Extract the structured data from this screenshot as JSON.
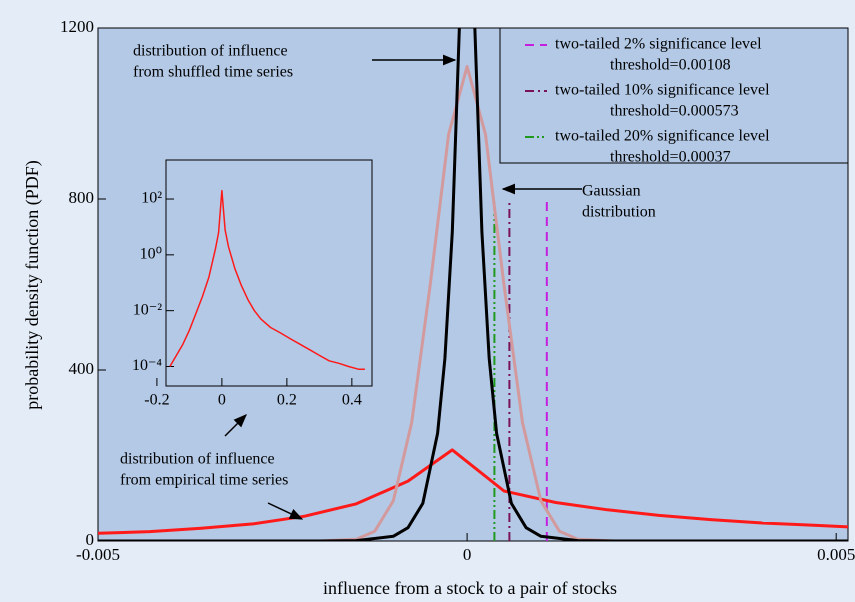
{
  "chart_data": [
    {
      "type": "line",
      "xlabel": "influence from a stock to a pair of stocks",
      "ylabel": "probability density function (PDF)",
      "xlim": [
        -0.005,
        0.00516
      ],
      "xticks": [
        -0.005,
        0,
        0.005
      ],
      "ylim": [
        0,
        1200
      ],
      "yticks": [
        0,
        400,
        800,
        1200
      ],
      "series": [
        {
          "name": "distribution of influence from empirical time series",
          "color": "#ff1a1a",
          "x": [
            -0.005,
            -0.0043,
            -0.0036,
            -0.0029,
            -0.0022,
            -0.0015,
            -0.0008,
            -0.0002,
            0.0005,
            0.0012,
            0.0019,
            0.0026,
            0.0033,
            0.004,
            0.0047,
            0.00516
          ],
          "values": [
            18,
            22,
            30,
            40,
            58,
            87,
            140,
            213,
            117,
            90,
            73,
            60,
            50,
            42,
            37,
            33
          ]
        },
        {
          "name": "Gaussian distribution",
          "color": "#d39a9e",
          "x": [
            -0.002,
            -0.0015,
            -0.00125,
            -0.001,
            -0.00075,
            -0.0005,
            -0.00025,
            0,
            0.00025,
            0.0005,
            0.00075,
            0.001,
            0.00125,
            0.0015,
            0.002
          ],
          "values": [
            0,
            4,
            23,
            94,
            277,
            599,
            951,
            1110,
            951,
            599,
            277,
            94,
            23,
            4,
            0
          ]
        },
        {
          "name": "distribution of influence from shuffled time series",
          "color": "#000000",
          "x": [
            -0.005,
            -0.002,
            -0.0015,
            -0.001,
            -0.0008,
            -0.0006,
            -0.0004,
            -0.0003,
            -0.0002,
            -0.0001,
            0,
            0.0001,
            0.0002,
            0.0003,
            0.0004,
            0.0006,
            0.0008,
            0.001,
            0.0015,
            0.002,
            0.00516
          ],
          "values": [
            0,
            0,
            1,
            11,
            31,
            88,
            252,
            427,
            723,
            1223,
            2070,
            1223,
            723,
            427,
            252,
            88,
            31,
            11,
            1,
            0,
            0
          ]
        }
      ],
      "thresholds": [
        {
          "name": "two-tailed 2% significance level",
          "label": "threshold=0.00108",
          "x": 0.00108,
          "ymax": 800,
          "color": "#c51fe0",
          "dash": "9 6"
        },
        {
          "name": "two-tailed 10% significance level",
          "label": "threshold=0.000573",
          "x": 0.000573,
          "ymax": 800,
          "color": "#7a1258",
          "dash": "9 4 2 4"
        },
        {
          "name": "two-tailed 20% significance level",
          "label": "threshold=0.00037",
          "x": 0.00037,
          "ymax": 800,
          "color": "#1f9a1f",
          "dash": "9 3 2 3 2 3"
        }
      ],
      "annotations": [
        {
          "lines": [
            "distribution of influence",
            "from shuffled time series"
          ]
        },
        {
          "lines": [
            "Gaussian",
            "distribution"
          ]
        },
        {
          "lines": [
            "distribution of influence",
            "from empirical time series"
          ]
        }
      ]
    },
    {
      "type": "line",
      "ylog": true,
      "xlim": [
        -0.172,
        0.462
      ],
      "xticks": [
        -0.2,
        0,
        0.2,
        0.4
      ],
      "ylim": [
        2e-05,
        2500
      ],
      "yticks": [
        {
          "value": 0.0001,
          "label": "10⁻⁴"
        },
        {
          "value": 0.01,
          "label": "10⁻²"
        },
        {
          "value": 1,
          "label": "10⁰"
        },
        {
          "value": 100,
          "label": "10²"
        }
      ],
      "series": [
        {
          "name": "empirical",
          "color": "#ff1a1a",
          "x": [
            -0.16,
            -0.14,
            -0.12,
            -0.1,
            -0.08,
            -0.06,
            -0.04,
            -0.02,
            -0.01,
            0,
            0.01,
            0.02,
            0.04,
            0.06,
            0.08,
            0.1,
            0.12,
            0.15,
            0.18,
            0.21,
            0.24,
            0.27,
            0.3,
            0.33,
            0.36,
            0.39,
            0.42,
            0.44
          ],
          "values": [
            0.0001,
            0.00025,
            0.00063,
            0.002,
            0.0079,
            0.032,
            0.16,
            1.6,
            6.3,
            200,
            7.9,
            2,
            0.32,
            0.079,
            0.025,
            0.01,
            0.005,
            0.0025,
            0.0016,
            0.001,
            0.00063,
            0.0004,
            0.00025,
            0.00016,
            0.00013,
            0.0001,
            8e-05,
            8e-05
          ]
        }
      ]
    }
  ]
}
